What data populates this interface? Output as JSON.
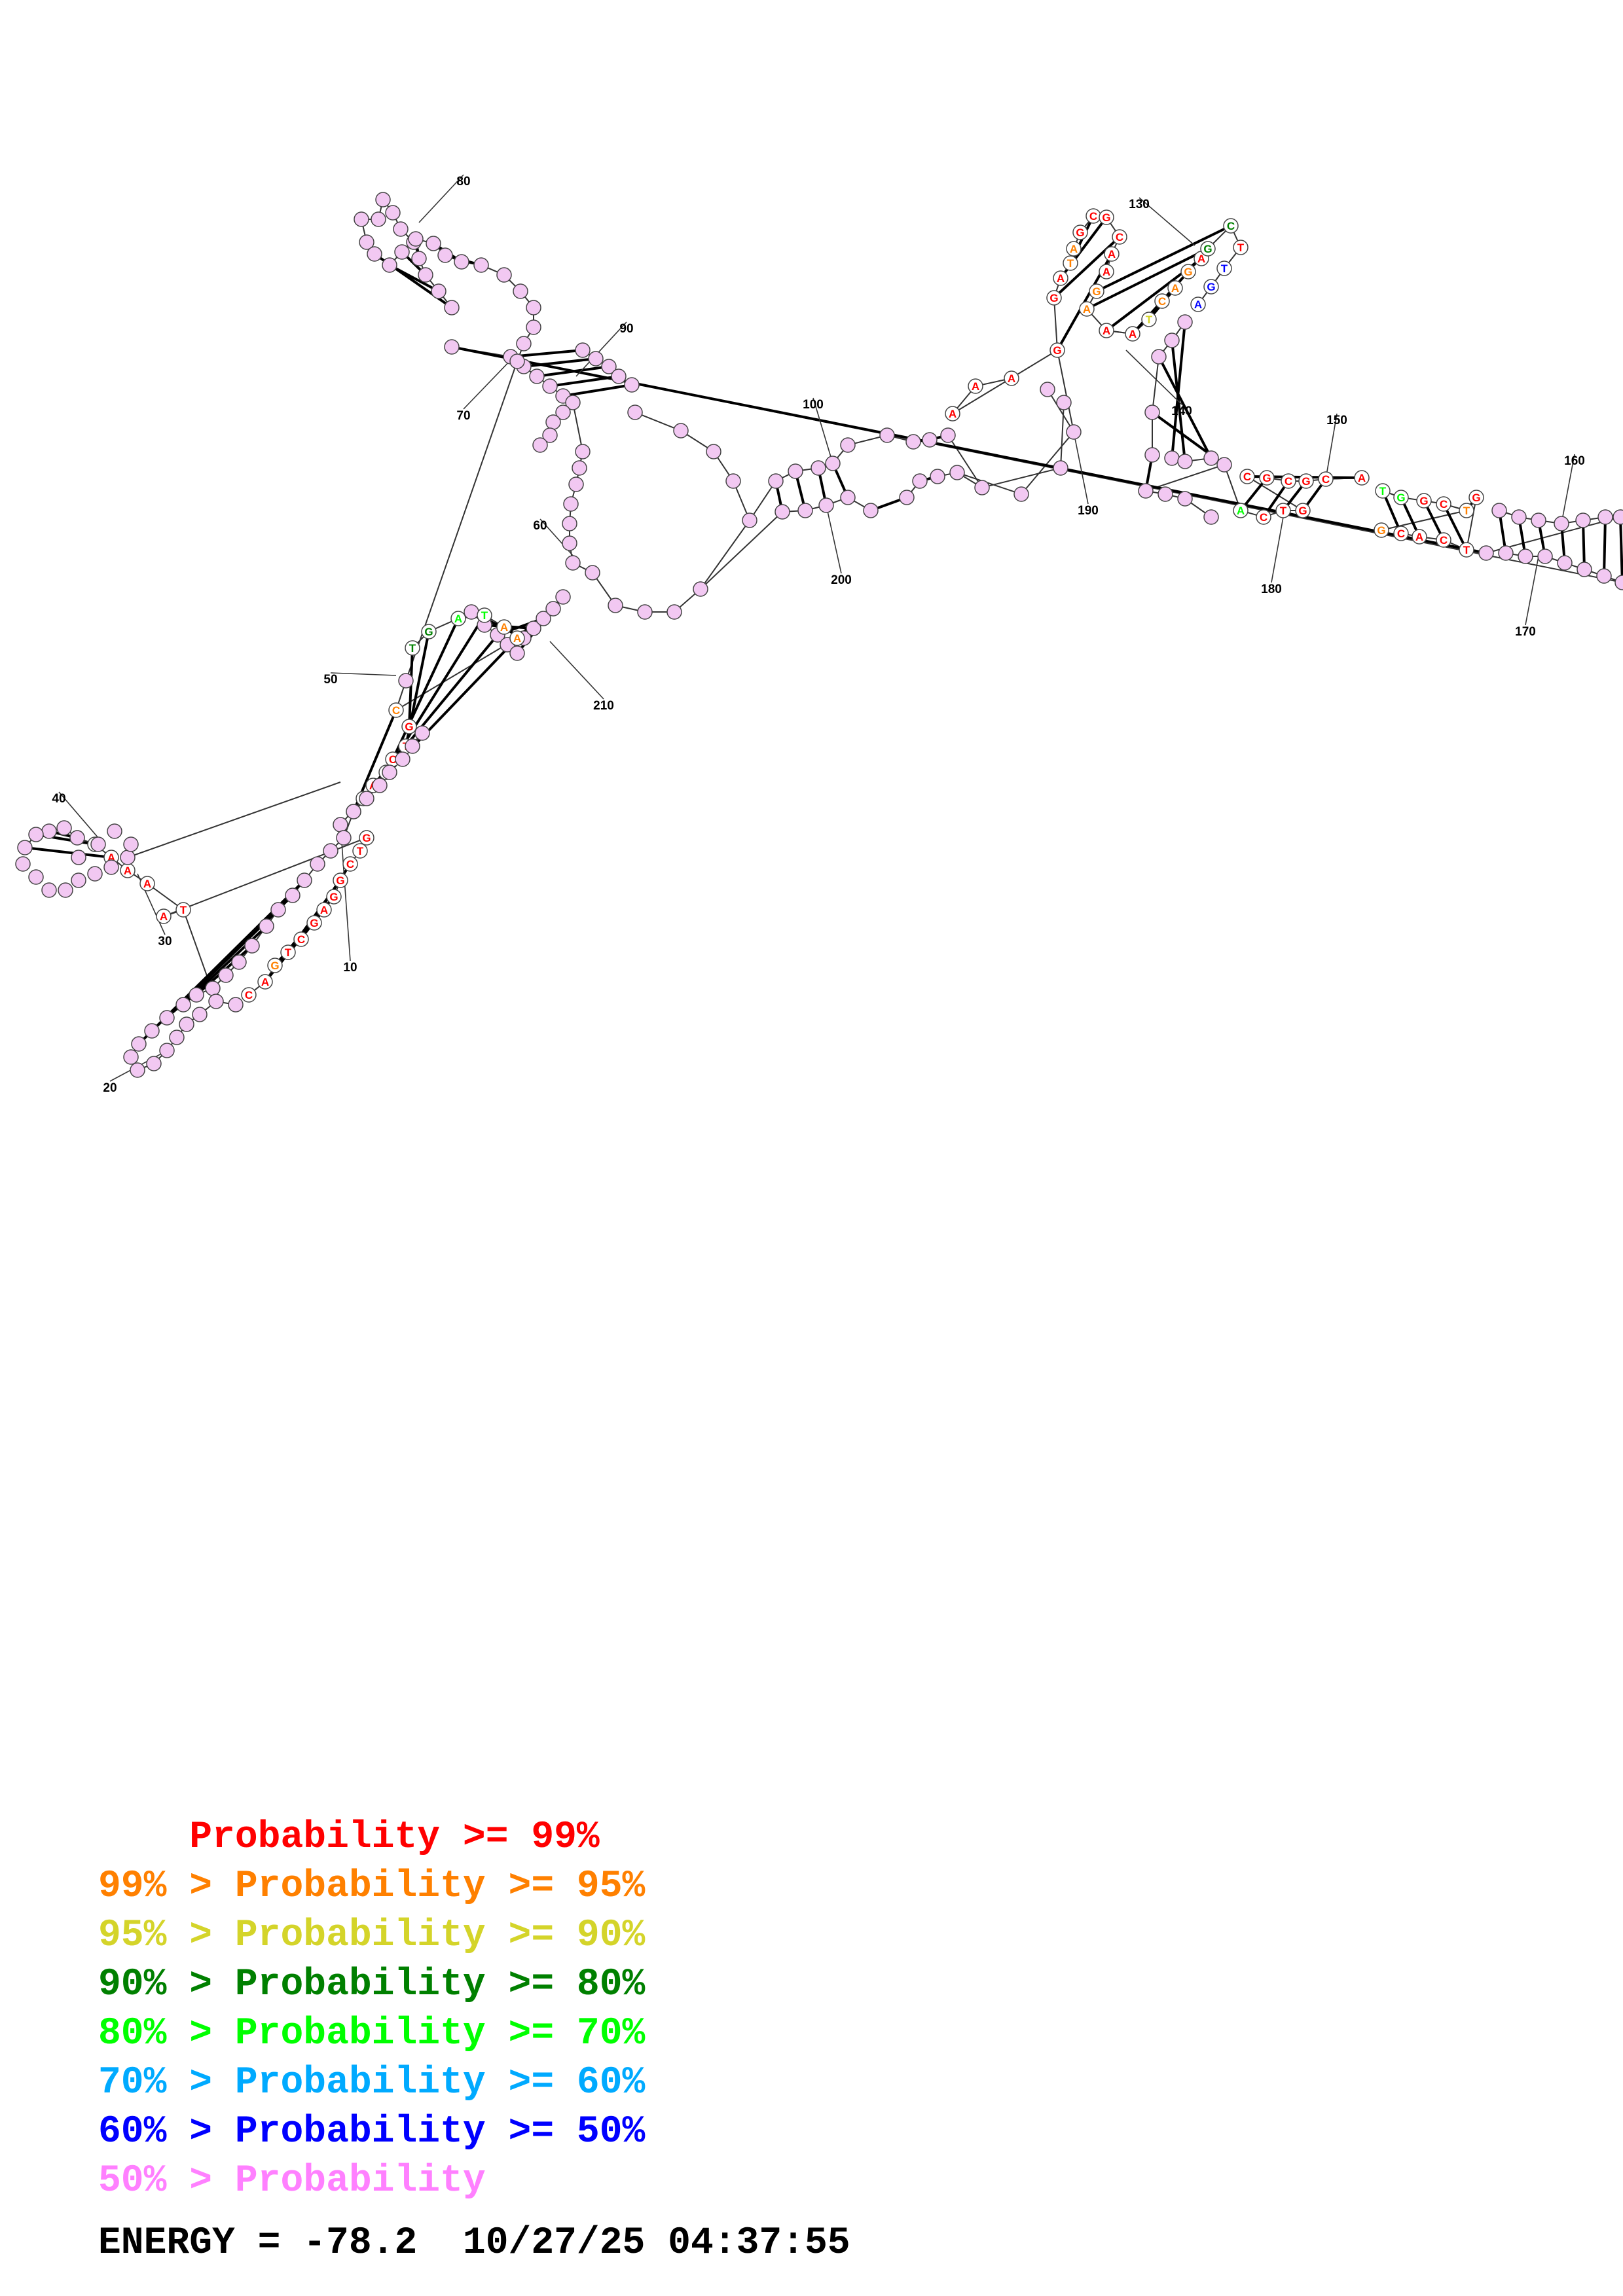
{
  "legend": [
    {
      "prefix": "    ",
      "text": "Probability >= 99%",
      "color": "#ff0000"
    },
    {
      "prefix": "99% > ",
      "text": "Probability >= 95%",
      "color": "#ff8000"
    },
    {
      "prefix": "95% > ",
      "text": "Probability >= 90%",
      "color": "#d4d42a"
    },
    {
      "prefix": "90% > ",
      "text": "Probability >= 80%",
      "color": "#008000"
    },
    {
      "prefix": "80% > ",
      "text": "Probability >= 70%",
      "color": "#00ff00"
    },
    {
      "prefix": "70% > ",
      "text": "Probability >= 60%",
      "color": "#00aaff"
    },
    {
      "prefix": "60% > ",
      "text": "Probability >= 50%",
      "color": "#0000ff"
    },
    {
      "prefix": "50% > ",
      "text": "Probability",
      "color": "#ff80ff"
    }
  ],
  "footer": {
    "energy": "ENERGY = -78.2",
    "timestamp": "10/27/25 04:37:55"
  },
  "position_labels": [
    "10",
    "20",
    "30",
    "40",
    "50",
    "60",
    "70",
    "80",
    "90",
    "100",
    "130",
    "140",
    "150",
    "160",
    "170",
    "180",
    "190",
    "200",
    "210"
  ],
  "nucleotides": [
    {
      "b": "A",
      "c": "#ff0000"
    },
    {
      "b": "A",
      "c": "#ff0000"
    },
    {
      "b": "A",
      "c": "#ff0000"
    },
    {
      "b": "G",
      "c": "#ff0000"
    },
    {
      "b": "G",
      "c": "#ff0000"
    },
    {
      "b": "A",
      "c": "#ff0000"
    },
    {
      "b": "T",
      "c": "#ff8000"
    },
    {
      "b": "A",
      "c": "#ff8000"
    },
    {
      "b": "G",
      "c": "#ff0000"
    },
    {
      "b": "C",
      "c": "#ff0000"
    },
    {
      "b": "G",
      "c": "#ff0000"
    },
    {
      "b": "C",
      "c": "#ff0000"
    },
    {
      "b": "A",
      "c": "#ff0000"
    },
    {
      "b": "A",
      "c": "#ff0000"
    },
    {
      "b": "G",
      "c": "#ff8000"
    },
    {
      "b": "A",
      "c": "#ff8000"
    },
    {
      "b": "A",
      "c": "#ff0000"
    },
    {
      "b": "A",
      "c": "#ff0000"
    },
    {
      "b": "T",
      "c": "#d4d42a"
    },
    {
      "b": "C",
      "c": "#ff8000"
    },
    {
      "b": "A",
      "c": "#ff8000"
    },
    {
      "b": "G",
      "c": "#ff8000"
    },
    {
      "b": "A",
      "c": "#ff0000"
    },
    {
      "b": "G",
      "c": "#008000"
    },
    {
      "b": "C",
      "c": "#008000"
    },
    {
      "b": "T",
      "c": "#ff0000"
    },
    {
      "b": "T",
      "c": "#0000ff"
    },
    {
      "b": "G",
      "c": "#0000ff"
    },
    {
      "b": "A",
      "c": "#0000ff"
    },
    {
      "b": "A",
      "c": "#00ff00"
    },
    {
      "b": "C",
      "c": "#ff0000"
    },
    {
      "b": "T",
      "c": "#ff0000"
    },
    {
      "b": "G",
      "c": "#ff0000"
    },
    {
      "b": "C",
      "c": "#ff0000"
    },
    {
      "b": "G",
      "c": "#ff0000"
    },
    {
      "b": "C",
      "c": "#ff0000"
    },
    {
      "b": "G",
      "c": "#ff0000"
    },
    {
      "b": "C",
      "c": "#ff0000"
    },
    {
      "b": "A",
      "c": "#ff0000"
    },
    {
      "b": "T",
      "c": "#00ff00"
    },
    {
      "b": "G",
      "c": "#00ff00"
    },
    {
      "b": "G",
      "c": "#ff0000"
    },
    {
      "b": "C",
      "c": "#ff0000"
    },
    {
      "b": "T",
      "c": "#ff8000"
    },
    {
      "b": "G",
      "c": "#ff8000"
    },
    {
      "b": "C",
      "c": "#ff0000"
    },
    {
      "b": "A",
      "c": "#ff0000"
    },
    {
      "b": "C",
      "c": "#ff0000"
    },
    {
      "b": "T",
      "c": "#ff0000"
    },
    {
      "b": "G",
      "c": "#ff0000"
    },
    {
      "b": "T",
      "c": "#008000"
    },
    {
      "b": "G",
      "c": "#008000"
    },
    {
      "b": "A",
      "c": "#00ff00"
    },
    {
      "b": "T",
      "c": "#00ff00"
    },
    {
      "b": "A",
      "c": "#ff8000"
    },
    {
      "b": "A",
      "c": "#ff8000"
    },
    {
      "b": "C",
      "c": "#ff8000"
    },
    {
      "b": "G",
      "c": "#ff0000"
    },
    {
      "b": "T",
      "c": "#ff0000"
    },
    {
      "b": "C",
      "c": "#ff0000"
    },
    {
      "b": "G",
      "c": "#ff0000"
    },
    {
      "b": "A",
      "c": "#ff0000"
    },
    {
      "b": "G",
      "c": "#ff0000"
    },
    {
      "b": "T",
      "c": "#ff0000"
    },
    {
      "b": "C",
      "c": "#ff0000"
    },
    {
      "b": "A",
      "c": "#ff0000"
    },
    {
      "b": "G",
      "c": "#ff8000"
    },
    {
      "b": "T",
      "c": "#ff0000"
    },
    {
      "b": "C",
      "c": "#ff0000"
    },
    {
      "b": "G",
      "c": "#ff0000"
    },
    {
      "b": "A",
      "c": "#ff0000"
    },
    {
      "b": "G",
      "c": "#ff0000"
    },
    {
      "b": "G",
      "c": "#ff0000"
    },
    {
      "b": "C",
      "c": "#ff0000"
    },
    {
      "b": "T",
      "c": "#ff0000"
    },
    {
      "b": "G",
      "c": "#ff0000"
    },
    {
      "b": "A",
      "c": "#ff0000"
    },
    {
      "b": "T",
      "c": "#ff0000"
    }
  ]
}
